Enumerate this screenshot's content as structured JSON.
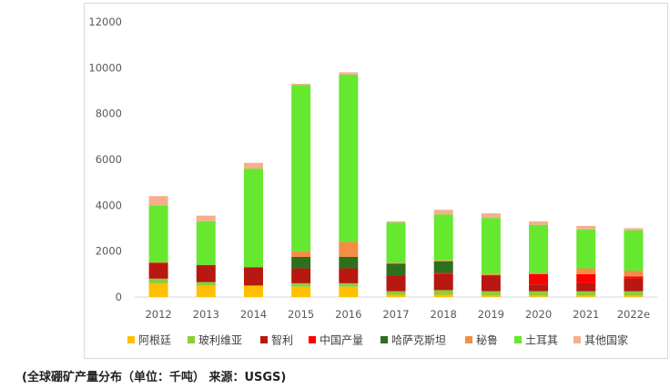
{
  "caption": "(全球硼矿产量分布（单位：千吨） 来源：USGS)",
  "chart_data": {
    "type": "bar",
    "stacked": true,
    "title": "",
    "xlabel": "",
    "ylabel": "",
    "ylim": [
      0,
      12000
    ],
    "yticks": [
      0,
      2000,
      4000,
      6000,
      8000,
      10000,
      12000
    ],
    "grid": false,
    "legend_position": "bottom",
    "categories": [
      "2012",
      "2013",
      "2014",
      "2015",
      "2016",
      "2017",
      "2018",
      "2019",
      "2020",
      "2021",
      "2022e"
    ],
    "series": [
      {
        "name": "阿根廷",
        "color": "#ffc000",
        "values": [
          600,
          500,
          500,
          450,
          450,
          100,
          100,
          50,
          50,
          50,
          50
        ]
      },
      {
        "name": "玻利维亚",
        "color": "#8ccd3a",
        "values": [
          200,
          150,
          0,
          150,
          150,
          150,
          200,
          200,
          200,
          200,
          200
        ]
      },
      {
        "name": "智利",
        "color": "#b7180f",
        "values": [
          650,
          700,
          800,
          650,
          650,
          700,
          700,
          700,
          300,
          350,
          550
        ]
      },
      {
        "name": "中国产量",
        "color": "#ff0000",
        "values": [
          50,
          50,
          0,
          0,
          0,
          0,
          50,
          0,
          450,
          400,
          100
        ]
      },
      {
        "name": "哈萨克斯坦",
        "color": "#2e6f1e",
        "values": [
          0,
          0,
          0,
          500,
          500,
          500,
          500,
          0,
          0,
          0,
          0
        ]
      },
      {
        "name": "秘鲁",
        "color": "#f28e45",
        "values": [
          0,
          0,
          0,
          250,
          650,
          50,
          50,
          50,
          50,
          250,
          250
        ]
      },
      {
        "name": "土耳其",
        "color": "#66e82f",
        "values": [
          2500,
          1900,
          4300,
          7250,
          7300,
          1750,
          2000,
          2450,
          2100,
          1700,
          1750
        ]
      },
      {
        "name": "其他国家",
        "color": "#f4b08b",
        "values": [
          400,
          250,
          250,
          50,
          100,
          50,
          200,
          200,
          150,
          150,
          100
        ]
      }
    ]
  }
}
